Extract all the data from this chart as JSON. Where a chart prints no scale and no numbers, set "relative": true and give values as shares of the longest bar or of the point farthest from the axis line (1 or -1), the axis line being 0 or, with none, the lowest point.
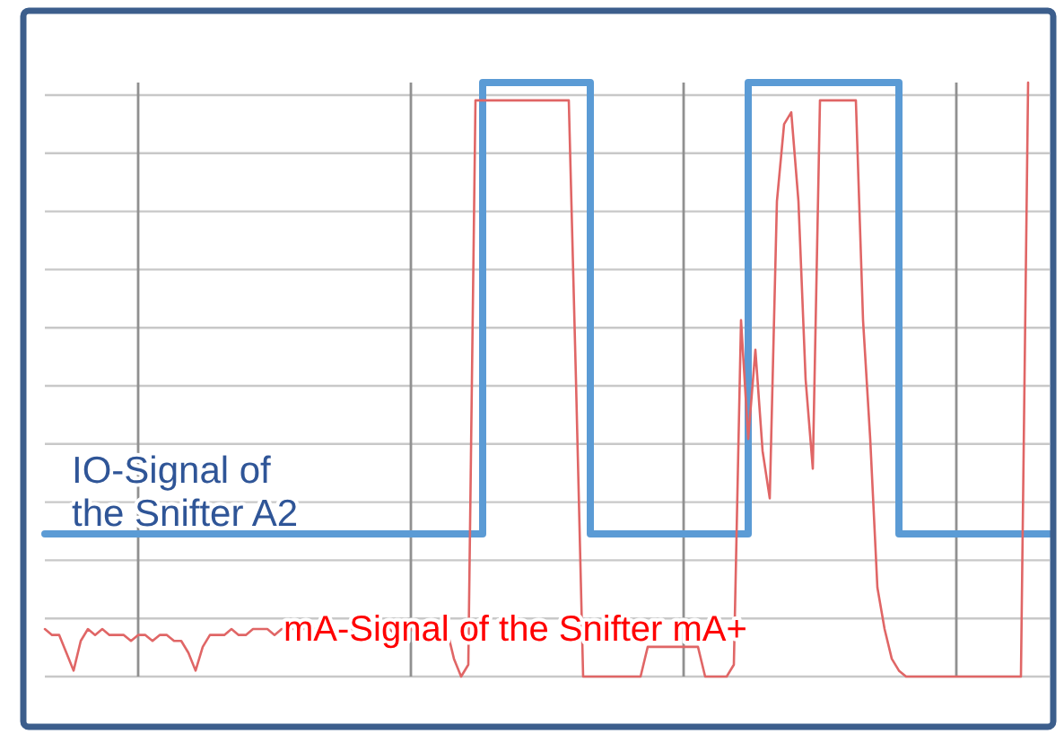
{
  "chart_data": {
    "type": "line",
    "relative": true,
    "grid": true,
    "legend": false,
    "categories": [
      null,
      null,
      null,
      null,
      null,
      null,
      null,
      null,
      null,
      null,
      null,
      null,
      null,
      null,
      null,
      null,
      null,
      null,
      null,
      null,
      null,
      null,
      null,
      null,
      null,
      null,
      null,
      null,
      null,
      null,
      null,
      null,
      null,
      null,
      null,
      null,
      null,
      null,
      null,
      null,
      null,
      null,
      null,
      null,
      null,
      null,
      null,
      null,
      null,
      null,
      null,
      null,
      null,
      null,
      null,
      null,
      null,
      null,
      null,
      null,
      null,
      null,
      null,
      null,
      null,
      null,
      null,
      null,
      null,
      null,
      null,
      null,
      null,
      null,
      null,
      null,
      null,
      null,
      null,
      null,
      null,
      null,
      null,
      null,
      null,
      null,
      null,
      null,
      null,
      null,
      null,
      null,
      null,
      null,
      null,
      null,
      null,
      null,
      null,
      null,
      null,
      null,
      null,
      null,
      null,
      null,
      null,
      null,
      null,
      null,
      null,
      null,
      null,
      null,
      null,
      null,
      null,
      null,
      null,
      null,
      null,
      null,
      null,
      null,
      null,
      null,
      null,
      null,
      null,
      null,
      null,
      null,
      null,
      null,
      null,
      null,
      null,
      null,
      null,
      null,
      null
    ],
    "series": [
      {
        "name": "IO-Signal of the Snifter A2",
        "type": "step",
        "color": "#5b9bd5",
        "values": [
          0.24,
          0.24,
          0.24,
          0.24,
          0.24,
          0.24,
          0.24,
          0.24,
          0.24,
          0.24,
          0.24,
          0.24,
          0.24,
          0.24,
          0.24,
          0.24,
          0.24,
          0.24,
          0.24,
          0.24,
          0.24,
          0.24,
          0.24,
          0.24,
          0.24,
          0.24,
          0.24,
          0.24,
          0.24,
          0.24,
          0.24,
          0.24,
          0.24,
          0.24,
          0.24,
          0.24,
          0.24,
          0.24,
          0.24,
          0.24,
          0.24,
          0.24,
          0.24,
          0.24,
          0.24,
          0.24,
          0.24,
          0.24,
          0.24,
          0.24,
          0.24,
          0.24,
          0.24,
          0.24,
          0.24,
          0.24,
          0.24,
          0.24,
          0.24,
          0.24,
          0.24,
          1,
          1,
          1,
          1,
          1,
          1,
          1,
          1,
          1,
          1,
          1,
          1,
          1,
          1,
          1,
          0.24,
          0.24,
          0.24,
          0.24,
          0.24,
          0.24,
          0.24,
          0.24,
          0.24,
          0.24,
          0.24,
          0.24,
          0.24,
          0.24,
          0.24,
          0.24,
          0.24,
          0.24,
          0.24,
          0.24,
          0.24,
          0.24,
          1,
          1,
          1,
          1,
          1,
          1,
          1,
          1,
          1,
          1,
          1,
          1,
          1,
          1,
          1,
          1,
          1,
          1,
          1,
          1,
          1,
          0.24,
          0.24,
          0.24,
          0.24,
          0.24,
          0.24,
          0.24,
          0.24,
          0.24,
          0.24,
          0.24,
          0.24,
          0.24,
          0.24,
          0.24,
          0.24,
          0.24,
          0.24,
          0.24,
          0.24,
          0.24,
          0.24
        ]
      },
      {
        "name": "mA-Signal of the Snifter mA+",
        "type": "line",
        "color": "#e06666",
        "values": [
          0.08,
          0.07,
          0.07,
          0.04,
          0.01,
          0.06,
          0.08,
          0.07,
          0.08,
          0.07,
          0.07,
          0.07,
          0.06,
          0.07,
          0.07,
          0.06,
          0.07,
          0.07,
          0.06,
          0.06,
          0.04,
          0.01,
          0.05,
          0.07,
          0.07,
          0.07,
          0.08,
          0.07,
          0.07,
          0.08,
          0.08,
          0.08,
          0.07,
          0.08,
          0.08,
          0.08,
          0.08,
          0.08,
          0.08,
          0.08,
          0.07,
          0.08,
          0.08,
          0.08,
          0.08,
          0.08,
          0.08,
          0.07,
          0.08,
          0.07,
          0.08,
          0.08,
          0.07,
          0.08,
          0.08,
          0.08,
          0.08,
          0.03,
          0.0,
          0.02,
          0.97,
          0.97,
          0.97,
          0.97,
          0.97,
          0.97,
          0.97,
          0.97,
          0.97,
          0.97,
          0.97,
          0.97,
          0.97,
          0.97,
          0.5,
          0.0,
          0.0,
          0.0,
          0.0,
          0.0,
          0.0,
          0.0,
          0.0,
          0.0,
          0.05,
          0.05,
          0.05,
          0.05,
          0.05,
          0.05,
          0.05,
          0.05,
          0.0,
          0.0,
          0.0,
          0.0,
          0.02,
          0.6,
          0.4,
          0.55,
          0.38,
          0.3,
          0.8,
          0.93,
          0.95,
          0.8,
          0.5,
          0.35,
          0.97,
          0.97,
          0.97,
          0.97,
          0.97,
          0.97,
          0.6,
          0.4,
          0.15,
          0.08,
          0.03,
          0.01,
          0.0,
          0.0,
          0.0,
          0.0,
          0.0,
          0.0,
          0.0,
          0.0,
          0.0,
          0.0,
          0.0,
          0.0,
          0.0,
          0.0,
          0.0,
          0.0,
          0.0,
          1.0,
          null,
          null,
          null
        ]
      }
    ]
  }
}
